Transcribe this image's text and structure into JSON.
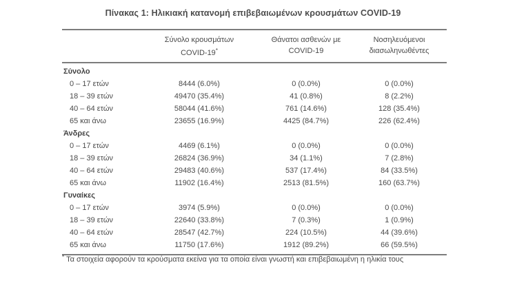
{
  "title": "Πίνακας 1: Ηλικιακή κατανομή επιβεβαιωμένων κρουσμάτων COVID-19",
  "table": {
    "columns": [
      {
        "line1": "Σύνολο κρουσμάτων",
        "line2": "COVID-19",
        "sup": "*"
      },
      {
        "line1": "Θάνατοι ασθενών με",
        "line2": "COVID-19",
        "sup": ""
      },
      {
        "line1": "Νοσηλευόμενοι",
        "line2": "διασωληνωθέντες",
        "sup": ""
      }
    ],
    "sections": [
      {
        "label": "Σύνολο",
        "rows": [
          {
            "age": "0 – 17 ετών",
            "cells": [
              "8444 (6.0%)",
              "0 (0.0%)",
              "0 (0.0%)"
            ]
          },
          {
            "age": "18 – 39 ετών",
            "cells": [
              "49470 (35.4%)",
              "41 (0.8%)",
              "8 (2.2%)"
            ]
          },
          {
            "age": "40 – 64 ετών",
            "cells": [
              "58044 (41.6%)",
              "761 (14.6%)",
              "128 (35.4%)"
            ]
          },
          {
            "age": "65 και άνω",
            "cells": [
              "23655 (16.9%)",
              "4425 (84.7%)",
              "226 (62.4%)"
            ]
          }
        ]
      },
      {
        "label": "Άνδρες",
        "rows": [
          {
            "age": "0 – 17 ετών",
            "cells": [
              "4469 (6.1%)",
              "0 (0.0%)",
              "0 (0.0%)"
            ]
          },
          {
            "age": "18 – 39 ετών",
            "cells": [
              "26824 (36.9%)",
              "34 (1.1%)",
              "7 (2.8%)"
            ]
          },
          {
            "age": "40 – 64 ετών",
            "cells": [
              "29483 (40.6%)",
              "537 (17.4%)",
              "84 (33.5%)"
            ]
          },
          {
            "age": "65 και άνω",
            "cells": [
              "11902 (16.4%)",
              "2513 (81.5%)",
              "160 (63.7%)"
            ]
          }
        ]
      },
      {
        "label": "Γυναίκες",
        "rows": [
          {
            "age": "0 – 17 ετών",
            "cells": [
              "3974 (5.9%)",
              "0 (0.0%)",
              "0 (0.0%)"
            ]
          },
          {
            "age": "18 – 39 ετών",
            "cells": [
              "22640 (33.8%)",
              "7 (0.3%)",
              "1 (0.9%)"
            ]
          },
          {
            "age": "40 – 64 ετών",
            "cells": [
              "28547 (42.7%)",
              "224 (10.5%)",
              "44 (39.6%)"
            ]
          },
          {
            "age": "65 και άνω",
            "cells": [
              "11750 (17.6%)",
              "1912 (89.2%)",
              "66 (59.5%)"
            ]
          }
        ]
      }
    ]
  },
  "footnote": {
    "marker": "*",
    "text": "Τα στοιχεία αφορούν τα κρούσματα εκείνα για τα οποία είναι γνωστή και επιβεβαιωμένη η ηλικία τους"
  }
}
